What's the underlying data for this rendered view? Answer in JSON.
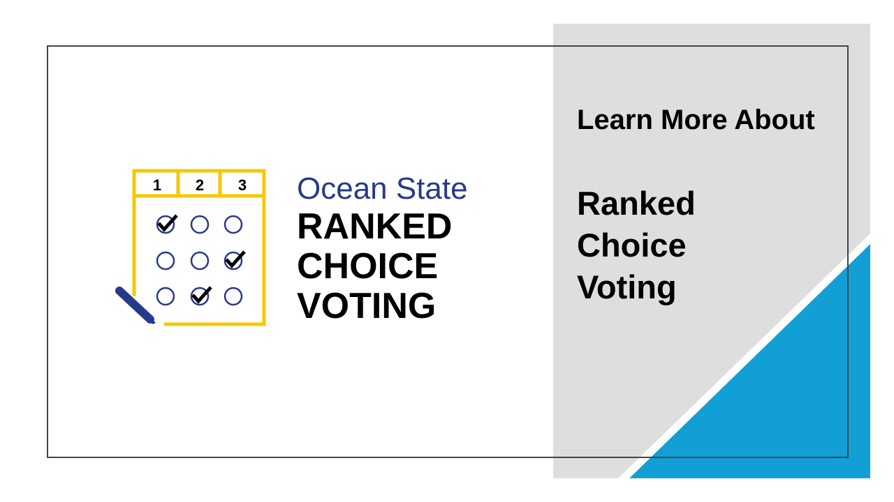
{
  "logo": {
    "line1": "Ocean State",
    "line2": "RANKED",
    "line3": "CHOICE",
    "line4": "VOTING",
    "ballot_columns": [
      "1",
      "2",
      "3"
    ],
    "checked": [
      [
        true,
        false,
        false
      ],
      [
        false,
        false,
        true
      ],
      [
        false,
        true,
        false
      ]
    ],
    "colors": {
      "frame": "#f5c800",
      "circles": "#263a8a",
      "pen": "#263a8a",
      "checks": "#000000"
    }
  },
  "side": {
    "heading": "Learn More About",
    "title_lines": [
      "Ranked",
      "Choice",
      "Voting"
    ]
  },
  "colors": {
    "panel": "#dedede",
    "accent": "#129fd6",
    "frame": "#444444"
  }
}
